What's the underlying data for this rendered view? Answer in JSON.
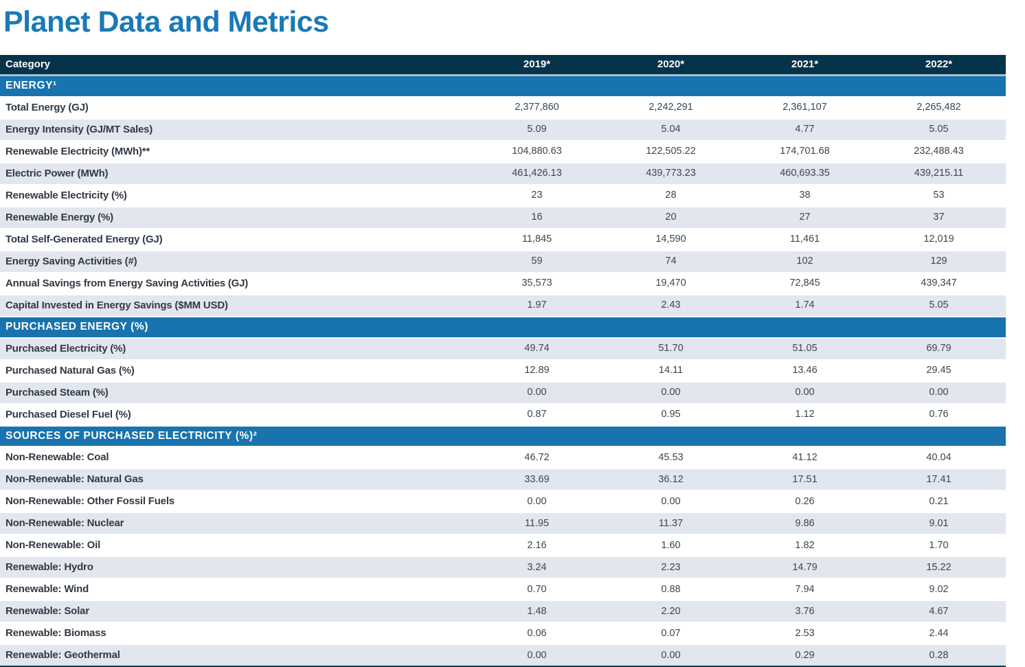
{
  "page": {
    "title": "Planet Data and Metrics"
  },
  "colors": {
    "title_blue": "#1a79b6",
    "header_bg": "#05334a",
    "section_bg": "#1873ae",
    "row_stripe_bg": "#e2e6ef",
    "row_white_bg": "#ffffff",
    "header_separator": "#a9bfd1",
    "table_bottom_border": "#0d3a52",
    "label_text": "#323943",
    "value_text": "#3e454d"
  },
  "table": {
    "header": {
      "category": "Category",
      "years": [
        "2019*",
        "2020*",
        "2021*",
        "2022*"
      ]
    },
    "sections": [
      {
        "title": "ENERGY¹",
        "rows": [
          {
            "label": "Total Energy (GJ)",
            "values": [
              "2,377,860",
              "2,242,291",
              "2,361,107",
              "2,265,482"
            ]
          },
          {
            "label": "Energy Intensity (GJ/MT Sales)",
            "values": [
              "5.09",
              "5.04",
              "4.77",
              "5.05"
            ]
          },
          {
            "label": "Renewable Electricity (MWh)**",
            "values": [
              "104,880.63",
              "122,505.22",
              "174,701.68",
              "232,488.43"
            ]
          },
          {
            "label": "Electric Power (MWh)",
            "values": [
              "461,426.13",
              "439,773.23",
              "460,693.35",
              "439,215.11"
            ]
          },
          {
            "label": "Renewable Electricity (%)",
            "values": [
              "23",
              "28",
              "38",
              "53"
            ]
          },
          {
            "label": "Renewable Energy (%)",
            "values": [
              "16",
              "20",
              "27",
              "37"
            ]
          },
          {
            "label": "Total Self-Generated Energy (GJ)",
            "values": [
              "11,845",
              "14,590",
              "11,461",
              "12,019"
            ]
          },
          {
            "label": "Energy Saving Activities (#)",
            "values": [
              "59",
              "74",
              "102",
              "129"
            ]
          },
          {
            "label": "Annual Savings from Energy Saving Activities (GJ)",
            "values": [
              "35,573",
              "19,470",
              "72,845",
              "439,347"
            ]
          },
          {
            "label": "Capital Invested in Energy Savings ($MM USD)",
            "values": [
              "1.97",
              "2.43",
              "1.74",
              "5.05"
            ]
          }
        ]
      },
      {
        "title": "PURCHASED ENERGY (%)",
        "rows": [
          {
            "label": "Purchased Electricity (%)",
            "values": [
              "49.74",
              "51.70",
              "51.05",
              "69.79"
            ]
          },
          {
            "label": "Purchased Natural Gas (%)",
            "values": [
              "12.89",
              "14.11",
              "13.46",
              "29.45"
            ]
          },
          {
            "label": "Purchased Steam (%)",
            "values": [
              "0.00",
              "0.00",
              "0.00",
              "0.00"
            ]
          },
          {
            "label": "Purchased Diesel Fuel (%)",
            "values": [
              "0.87",
              "0.95",
              "1.12",
              "0.76"
            ]
          }
        ]
      },
      {
        "title": "SOURCES OF PURCHASED ELECTRICITY (%)²",
        "rows": [
          {
            "label": "Non-Renewable: Coal",
            "values": [
              "46.72",
              "45.53",
              "41.12",
              "40.04"
            ]
          },
          {
            "label": "Non-Renewable: Natural Gas",
            "values": [
              "33.69",
              "36.12",
              "17.51",
              "17.41"
            ]
          },
          {
            "label": "Non-Renewable: Other Fossil Fuels",
            "values": [
              "0.00",
              "0.00",
              "0.26",
              "0.21"
            ]
          },
          {
            "label": "Non-Renewable: Nuclear",
            "values": [
              "11.95",
              "11.37",
              "9.86",
              "9.01"
            ]
          },
          {
            "label": "Non-Renewable: Oil",
            "values": [
              "2.16",
              "1.60",
              "1.82",
              "1.70"
            ]
          },
          {
            "label": "Renewable: Hydro",
            "values": [
              "3.24",
              "2.23",
              "14.79",
              "15.22"
            ]
          },
          {
            "label": "Renewable: Wind",
            "values": [
              "0.70",
              "0.88",
              "7.94",
              "9.02"
            ]
          },
          {
            "label": "Renewable: Solar",
            "values": [
              "1.48",
              "2.20",
              "3.76",
              "4.67"
            ]
          },
          {
            "label": "Renewable: Biomass",
            "values": [
              "0.06",
              "0.07",
              "2.53",
              "2.44"
            ]
          },
          {
            "label": "Renewable: Geothermal",
            "values": [
              "0.00",
              "0.00",
              "0.29",
              "0.28"
            ]
          }
        ]
      }
    ]
  }
}
